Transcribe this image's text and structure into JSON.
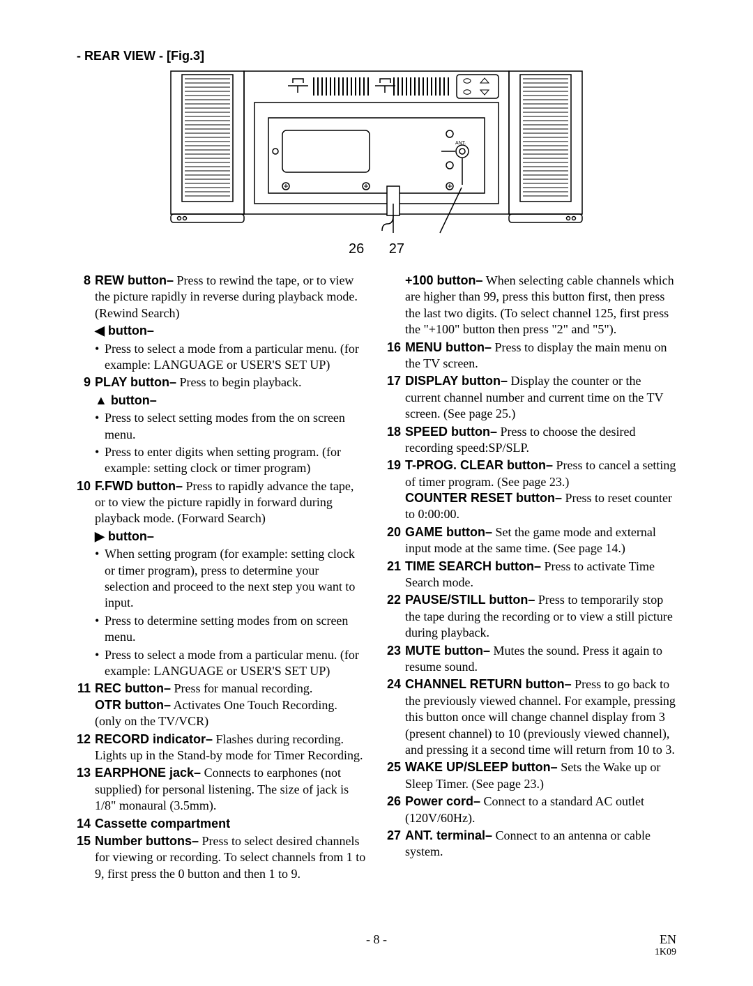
{
  "section_title": "- REAR VIEW - [Fig.3]",
  "callouts": {
    "a": "26",
    "b": "27"
  },
  "figure": {
    "stroke": "#000000",
    "fill": "#ffffff",
    "ant_label": "ANT."
  },
  "left_col": [
    {
      "num": "8",
      "label": "REW button–",
      "text": " Press to rewind the tape, or to view the picture rapidly in reverse during playback mode. (Rewind Search)",
      "sub_label": "◀ button–",
      "bullets": [
        "Press to select a mode from a particular menu. (for example: LANGUAGE or USER'S SET UP)"
      ]
    },
    {
      "num": "9",
      "label": "PLAY button–",
      "text": " Press to begin playback.",
      "sub_label": "▲ button–",
      "bullets": [
        "Press to select setting modes from the on screen menu.",
        "Press to enter digits when setting program. (for example: setting clock or timer program)"
      ]
    },
    {
      "num": "10",
      "label": "F.FWD button–",
      "text": " Press to rapidly advance the tape, or to view the picture rapidly in forward during playback mode. (Forward Search)",
      "sub_label": "▶ button–",
      "bullets": [
        "When setting program (for example: setting clock or timer program), press to determine your selection and proceed to the next step you want to input.",
        "Press to determine setting modes from on screen menu.",
        "Press to select a mode from a particular menu. (for example: LANGUAGE or USER'S SET UP)"
      ]
    },
    {
      "num": "11",
      "label": "REC button–",
      "text": " Press for manual recording.",
      "extra_label": "OTR button–",
      "extra_text": " Activates One Touch Recording. (only on the TV/VCR)"
    },
    {
      "num": "12",
      "label": "RECORD indicator–",
      "text": " Flashes during recording. Lights up in the Stand-by mode for Timer Recording."
    },
    {
      "num": "13",
      "label": "EARPHONE jack–",
      "text": " Connects to earphones (not supplied) for personal listening. The size of jack is 1/8\" monaural (3.5mm)."
    },
    {
      "num": "14",
      "label": "Cassette compartment",
      "text": ""
    },
    {
      "num": "15",
      "label": "Number buttons–",
      "text": " Press to select desired channels for viewing or recording. To select channels from 1 to 9, first press the 0 button and then 1 to 9."
    }
  ],
  "right_col": [
    {
      "num": "",
      "label": "+100 button–",
      "text": " When selecting cable channels which are higher than 99, press this button first, then press the last two digits. (To select channel 125, first press the \"+100\" button then press \"2\" and \"5\")."
    },
    {
      "num": "16",
      "label": "MENU button–",
      "text": " Press to display the main menu on the TV screen."
    },
    {
      "num": "17",
      "label": "DISPLAY button–",
      "text": " Display the counter or the current channel number and current time on the TV screen. (See page 25.)"
    },
    {
      "num": "18",
      "label": "SPEED button–",
      "text": " Press to choose the desired recording speed:SP/SLP."
    },
    {
      "num": "19",
      "label": "T-PROG. CLEAR button–",
      "text": " Press to cancel a setting of timer program. (See page 23.)",
      "extra_label": "COUNTER RESET button–",
      "extra_text": " Press to reset counter to 0:00:00."
    },
    {
      "num": "20",
      "label": "GAME button–",
      "text": " Set the game mode and external input mode at the same time. (See page 14.)"
    },
    {
      "num": "21",
      "label": "TIME SEARCH button–",
      "text": " Press to activate Time Search mode."
    },
    {
      "num": "22",
      "label": "PAUSE/STILL button–",
      "text": " Press to temporarily stop the tape during the recording or to view a still picture during playback."
    },
    {
      "num": "23",
      "label": "MUTE button–",
      "text": " Mutes the  sound. Press it again to resume sound."
    },
    {
      "num": "24",
      "label": "CHANNEL RETURN button–",
      "text": " Press to go back to the previously viewed channel. For example, pressing this button once will change channel display from 3 (present channel) to 10 (previously viewed channel), and pressing it a second time will return from 10 to 3."
    },
    {
      "num": "25",
      "label": "WAKE UP/SLEEP button–",
      "text": " Sets the Wake up or Sleep Timer. (See page 23.)"
    },
    {
      "num": "26",
      "label": "Power cord–",
      "text": " Connect to a standard AC outlet (120V/60Hz)."
    },
    {
      "num": "27",
      "label": "ANT. terminal–",
      "text": " Connect to an antenna or cable system."
    }
  ],
  "footer": {
    "page": "- 8 -",
    "lang": "EN",
    "doc": "1K09"
  }
}
